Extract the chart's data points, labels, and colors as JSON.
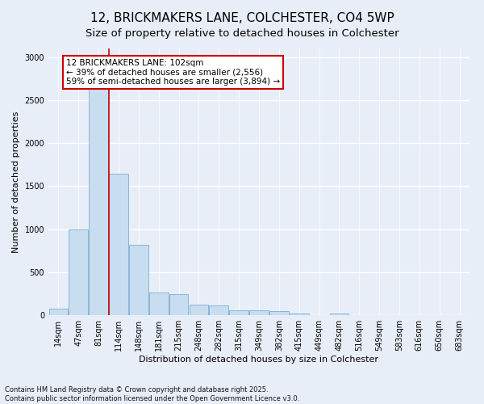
{
  "title": "12, BRICKMAKERS LANE, COLCHESTER, CO4 5WP",
  "subtitle": "Size of property relative to detached houses in Colchester",
  "xlabel": "Distribution of detached houses by size in Colchester",
  "ylabel": "Number of detached properties",
  "categories": [
    "14sqm",
    "47sqm",
    "81sqm",
    "114sqm",
    "148sqm",
    "181sqm",
    "215sqm",
    "248sqm",
    "282sqm",
    "315sqm",
    "349sqm",
    "382sqm",
    "415sqm",
    "449sqm",
    "482sqm",
    "516sqm",
    "549sqm",
    "583sqm",
    "616sqm",
    "650sqm",
    "683sqm"
  ],
  "values": [
    75,
    1000,
    2980,
    1640,
    820,
    265,
    245,
    120,
    110,
    60,
    55,
    45,
    22,
    0,
    18,
    0,
    0,
    0,
    0,
    0,
    0
  ],
  "bar_color": "#c9ddf0",
  "bar_edge_color": "#7bafd4",
  "vline_x": 2.5,
  "vline_color": "#cc0000",
  "annotation_text": "12 BRICKMAKERS LANE: 102sqm\n← 39% of detached houses are smaller (2,556)\n59% of semi-detached houses are larger (3,894) →",
  "annotation_box_facecolor": "white",
  "annotation_box_edgecolor": "#cc0000",
  "ylim": [
    0,
    3100
  ],
  "yticks": [
    0,
    500,
    1000,
    1500,
    2000,
    2500,
    3000
  ],
  "footnote": "Contains HM Land Registry data © Crown copyright and database right 2025.\nContains public sector information licensed under the Open Government Licence v3.0.",
  "background_color": "#e8eef8",
  "grid_color": "#ffffff",
  "title_fontsize": 11,
  "subtitle_fontsize": 9.5,
  "ylabel_fontsize": 8,
  "xlabel_fontsize": 8,
  "tick_fontsize": 7,
  "annot_fontsize": 7.5,
  "footnote_fontsize": 6
}
